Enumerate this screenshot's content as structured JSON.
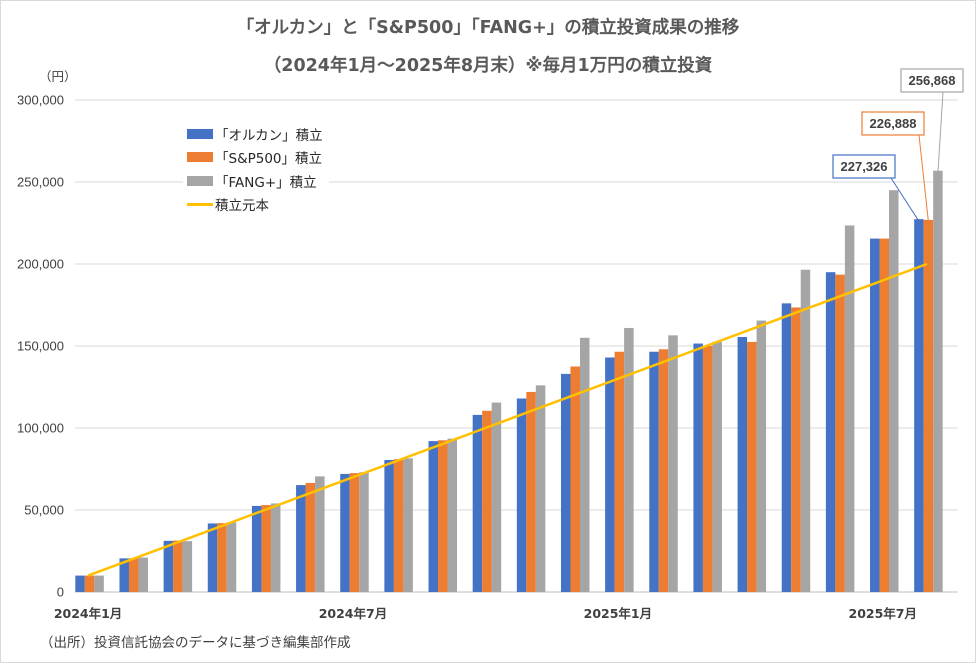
{
  "title_line1": "「オルカン」と「S&P500」「FANG+」の積立投資成果の推移",
  "title_line2": "（2024年1月～2025年8月末）※毎月1万円の積立投資",
  "unit_label": "（円）",
  "source_note": "（出所）投資信託協会のデータに基づき編集部作成",
  "chart_data": {
    "type": "bar",
    "categories": [
      "2024年1月",
      "2024年2月",
      "2024年3月",
      "2024年4月",
      "2024年5月",
      "2024年6月",
      "2024年7月",
      "2024年8月",
      "2024年9月",
      "2024年10月",
      "2024年11月",
      "2024年12月",
      "2025年1月",
      "2025年2月",
      "2025年3月",
      "2025年4月",
      "2025年5月",
      "2025年6月",
      "2025年7月",
      "2025年8月"
    ],
    "x_tick_labels": [
      {
        "index": 0,
        "label": "2024年1月"
      },
      {
        "index": 6,
        "label": "2024年7月"
      },
      {
        "index": 12,
        "label": "2025年1月"
      },
      {
        "index": 18,
        "label": "2025年7月"
      }
    ],
    "series": [
      {
        "name": "「オルカン」積立",
        "color": "#4472c4",
        "values": [
          10000,
          20500,
          31200,
          41800,
          52500,
          65200,
          72000,
          80500,
          92000,
          108000,
          118000,
          133000,
          143000,
          146500,
          151500,
          155500,
          176000,
          195000,
          215500,
          227326
        ]
      },
      {
        "name": "「S&P500」積立",
        "color": "#ed7d31",
        "values": [
          10000,
          20600,
          31400,
          42000,
          53000,
          66500,
          72500,
          81000,
          92500,
          110500,
          122000,
          137500,
          146500,
          148000,
          150000,
          152500,
          173500,
          193500,
          215500,
          226888
        ]
      },
      {
        "name": "「FANG+」積立",
        "color": "#a5a5a5",
        "values": [
          10000,
          21000,
          31000,
          42500,
          54000,
          70500,
          73000,
          81500,
          93500,
          115500,
          126000,
          155000,
          161000,
          156500,
          152500,
          165500,
          196500,
          223500,
          245000,
          256868
        ]
      }
    ],
    "line_series": {
      "name": "積立元本",
      "color": "#ffc000",
      "values": [
        10000,
        20000,
        30000,
        40000,
        50000,
        60000,
        70000,
        80000,
        90000,
        100000,
        110000,
        120000,
        130000,
        140000,
        150000,
        160000,
        170000,
        180000,
        190000,
        200000
      ]
    },
    "y_ticks": [
      "0",
      "50,000",
      "100,000",
      "150,000",
      "200,000",
      "250,000",
      "300,000"
    ],
    "ylim": [
      0,
      300000
    ],
    "grid": true,
    "legend_position": "top-left",
    "callouts": [
      {
        "label": "256,868",
        "series": 2,
        "border": "#a5a5a5"
      },
      {
        "label": "226,888",
        "series": 1,
        "border": "#ed7d31"
      },
      {
        "label": "227,326",
        "series": 0,
        "border": "#4472c4"
      }
    ]
  }
}
